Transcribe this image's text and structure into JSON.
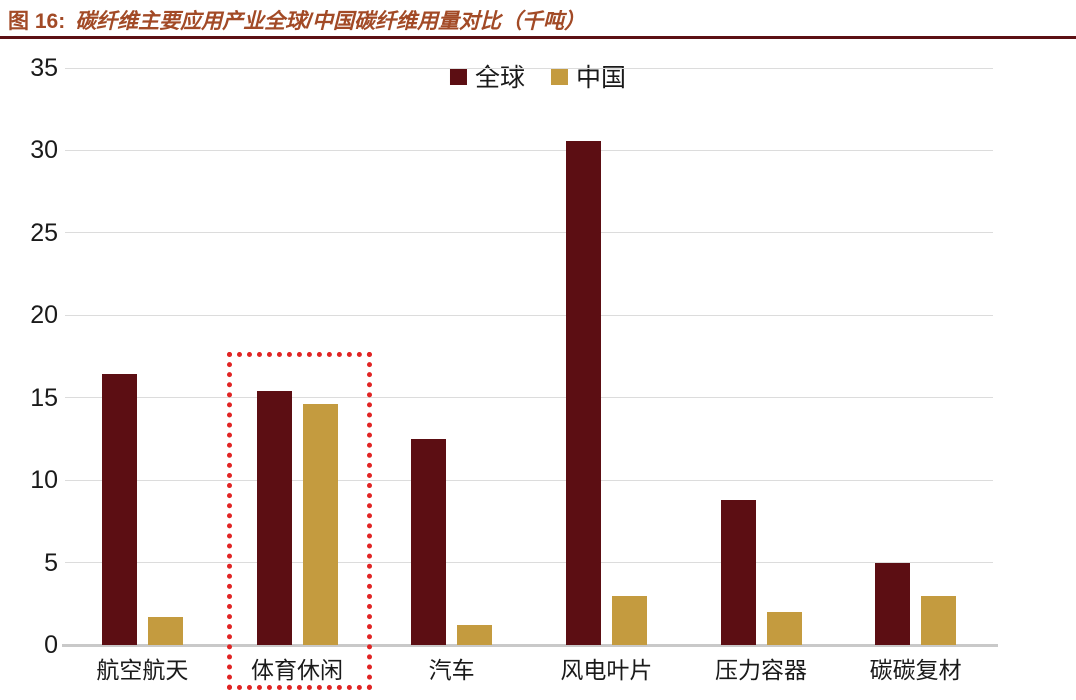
{
  "figure": {
    "label": "图 16:",
    "title": "碳纤维主要应用产业全球/中国碳纤维用量对比（千吨）"
  },
  "chart_data": {
    "type": "bar",
    "title": "碳纤维主要应用产业全球/中国碳纤维用量对比（千吨）",
    "unit": "千吨",
    "categories": [
      "航空航天",
      "体育休闲",
      "汽车",
      "风电叶片",
      "压力容器",
      "碳碳复材"
    ],
    "series": [
      {
        "name": "全球",
        "key": "global",
        "color": "#5C0E13",
        "values": [
          16.45,
          15.4,
          12.5,
          30.6,
          8.8,
          5.0
        ]
      },
      {
        "name": "中国",
        "key": "china",
        "color": "#C49B3F",
        "values": [
          1.7,
          14.6,
          1.2,
          3.0,
          2.0,
          3.0
        ]
      }
    ],
    "ylim": [
      0,
      35
    ],
    "yticks": [
      0,
      5,
      10,
      15,
      20,
      25,
      30,
      35
    ],
    "grid": "horizontal",
    "legend_position": "top-center",
    "highlight": {
      "category": "体育休闲",
      "style": "red-dotted-box"
    }
  },
  "colors": {
    "title": "#A24A26",
    "divider": "#5C1014",
    "grid": "#DCDCDC",
    "axis_line": "#C9C9C9",
    "axis_text": "#1A1A1A",
    "bar_global": "#5C0E13",
    "bar_china": "#C49B3F",
    "highlight_box": "#E02424",
    "background": "#FFFFFF"
  }
}
